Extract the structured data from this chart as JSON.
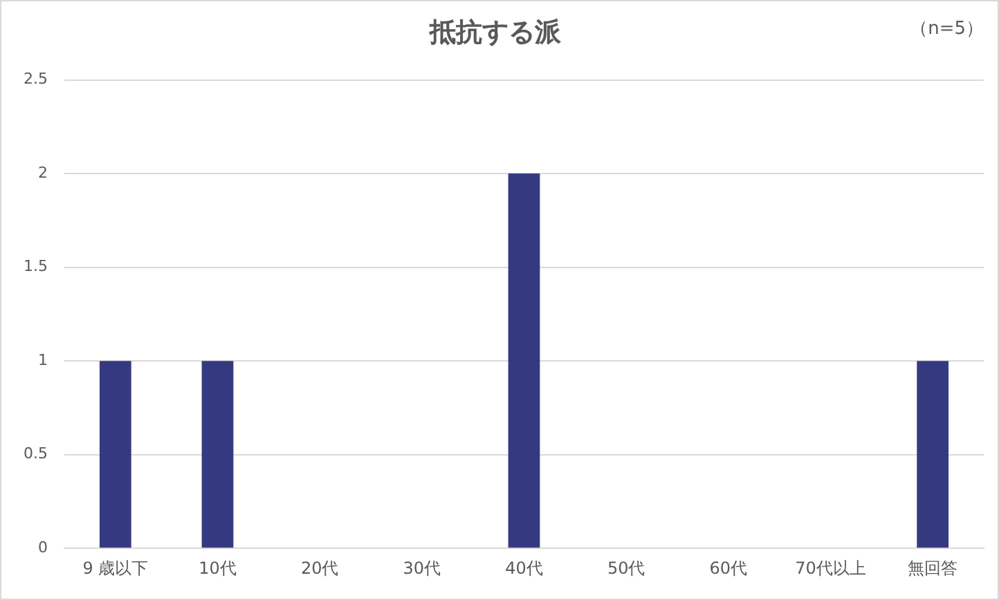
{
  "chart_data": {
    "type": "bar",
    "title": "抵抗する派",
    "annotations": [
      "（n=5）"
    ],
    "categories": [
      "9 歳以下",
      "10代",
      "20代",
      "30代",
      "40代",
      "50代",
      "60代",
      "70代以上",
      "無回答"
    ],
    "values": [
      1,
      1,
      0,
      0,
      2,
      0,
      0,
      0,
      1
    ],
    "color": "#353a80",
    "ylim": [
      0,
      2.5
    ],
    "yticks": [
      0,
      0.5,
      1,
      1.5,
      2,
      2.5
    ],
    "grid": "y",
    "legend": false
  }
}
